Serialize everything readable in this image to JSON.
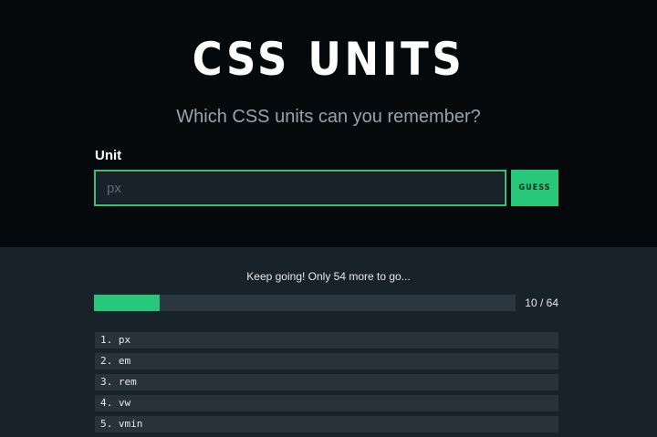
{
  "header": {
    "title": "CSS UNITS",
    "subtitle": "Which CSS units can you remember?"
  },
  "form": {
    "label": "Unit",
    "placeholder": "px",
    "value": "",
    "button": "GUESS"
  },
  "progress": {
    "message": "Keep going! Only 54 more to go...",
    "count_text": "10 / 64",
    "guessed": 10,
    "total": 64
  },
  "guesses": [
    "1. px",
    "2. em",
    "3. rem",
    "4. vw",
    "5. vmin"
  ],
  "colors": {
    "accent": "#27c87a",
    "header_bg": "#05090c",
    "body_bg": "#18222b"
  }
}
